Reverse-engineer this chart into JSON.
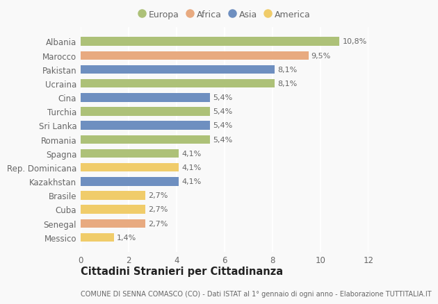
{
  "categories": [
    "Albania",
    "Marocco",
    "Pakistan",
    "Ucraina",
    "Cina",
    "Turchia",
    "Sri Lanka",
    "Romania",
    "Spagna",
    "Rep. Dominicana",
    "Kazakhstan",
    "Brasile",
    "Cuba",
    "Senegal",
    "Messico"
  ],
  "values": [
    10.8,
    9.5,
    8.1,
    8.1,
    5.4,
    5.4,
    5.4,
    5.4,
    4.1,
    4.1,
    4.1,
    2.7,
    2.7,
    2.7,
    1.4
  ],
  "labels": [
    "10,8%",
    "9,5%",
    "8,1%",
    "8,1%",
    "5,4%",
    "5,4%",
    "5,4%",
    "5,4%",
    "4,1%",
    "4,1%",
    "4,1%",
    "2,7%",
    "2,7%",
    "2,7%",
    "1,4%"
  ],
  "continents": [
    "Europa",
    "Africa",
    "Asia",
    "Europa",
    "Asia",
    "Europa",
    "Asia",
    "Europa",
    "Europa",
    "America",
    "Asia",
    "America",
    "America",
    "Africa",
    "America"
  ],
  "continent_colors": {
    "Europa": "#adc178",
    "Africa": "#e8aa80",
    "Asia": "#6e8fc0",
    "America": "#f0cc6a"
  },
  "legend_order": [
    "Europa",
    "Africa",
    "Asia",
    "America"
  ],
  "title": "Cittadini Stranieri per Cittadinanza",
  "subtitle": "COMUNE DI SENNA COMASCO (CO) - Dati ISTAT al 1° gennaio di ogni anno - Elaborazione TUTTITALIA.IT",
  "xlim": [
    0,
    12
  ],
  "xticks": [
    0,
    2,
    4,
    6,
    8,
    10,
    12
  ],
  "background_color": "#f9f9f9",
  "plot_bg_color": "#f9f9f9",
  "grid_color": "#ffffff",
  "bar_height": 0.62,
  "label_fontsize": 8.0,
  "tick_fontsize": 8.5,
  "ytick_fontsize": 8.5,
  "title_fontsize": 10.5,
  "subtitle_fontsize": 7.0,
  "text_color": "#666666",
  "title_color": "#222222"
}
